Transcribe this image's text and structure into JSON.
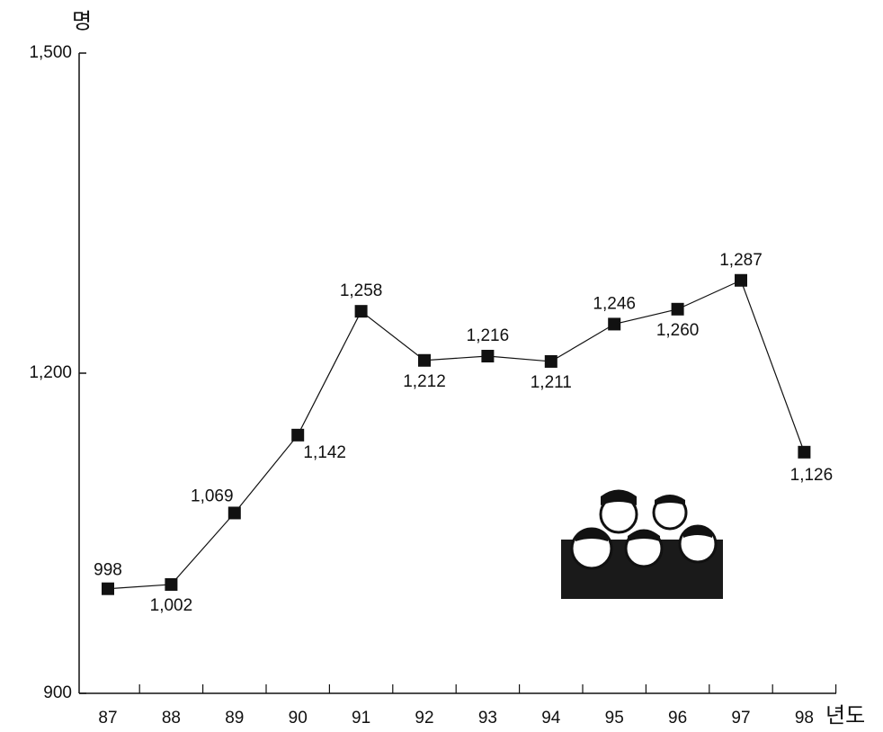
{
  "chart_data": {
    "type": "line",
    "y_label": "명",
    "x_label": "년도",
    "categories": [
      "87",
      "88",
      "89",
      "90",
      "91",
      "92",
      "93",
      "94",
      "95",
      "96",
      "97",
      "98"
    ],
    "values": [
      998,
      1002,
      1069,
      1142,
      1258,
      1212,
      1216,
      1211,
      1246,
      1260,
      1287,
      1126
    ],
    "value_labels": [
      "998",
      "1,002",
      "1,069",
      "1,142",
      "1,258",
      "1,212",
      "1,216",
      "1,211",
      "1,246",
      "1,260",
      "1,287",
      "1,126"
    ],
    "color": "#111111",
    "ylim": [
      900,
      1500
    ],
    "yticks": [
      900,
      {
        "value": 1200,
        "label": "1,200"
      },
      {
        "value": 1500,
        "label": "1,500"
      }
    ]
  }
}
